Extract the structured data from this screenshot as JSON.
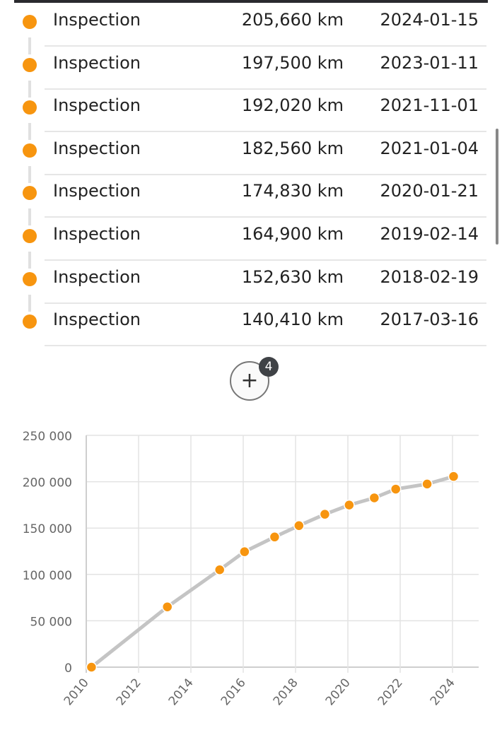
{
  "colors": {
    "accent": "#f7950f",
    "line": "#c4c4c4",
    "grid": "#e3e3e3",
    "axis_text": "#666666"
  },
  "events": [
    {
      "type": "Inspection",
      "mileage": "205,660 km",
      "date": "2024-01-15"
    },
    {
      "type": "Inspection",
      "mileage": "197,500 km",
      "date": "2023-01-11"
    },
    {
      "type": "Inspection",
      "mileage": "192,020 km",
      "date": "2021-11-01"
    },
    {
      "type": "Inspection",
      "mileage": "182,560 km",
      "date": "2021-01-04"
    },
    {
      "type": "Inspection",
      "mileage": "174,830 km",
      "date": "2020-01-21"
    },
    {
      "type": "Inspection",
      "mileage": "164,900 km",
      "date": "2019-02-14"
    },
    {
      "type": "Inspection",
      "mileage": "152,630 km",
      "date": "2018-02-19"
    },
    {
      "type": "Inspection",
      "mileage": "140,410 km",
      "date": "2017-03-16"
    }
  ],
  "show_more": {
    "icon": "plus-icon",
    "label": "+",
    "count": "4"
  },
  "chart_data": {
    "type": "line",
    "x": [
      2010.2,
      2013.1,
      2015.1,
      2016.05,
      2017.2,
      2018.13,
      2019.12,
      2020.05,
      2021.01,
      2021.83,
      2023.03,
      2024.04
    ],
    "y": [
      0,
      65000,
      105000,
      124500,
      140410,
      152630,
      164900,
      174830,
      182560,
      192020,
      197500,
      205660
    ],
    "xlim": [
      2010,
      2025
    ],
    "ylim": [
      0,
      250000
    ],
    "x_ticks": [
      "2010",
      "2012",
      "2014",
      "2016",
      "2018",
      "2020",
      "2022",
      "2024"
    ],
    "y_ticks": [
      "0",
      "50 000",
      "100 000",
      "150 000",
      "200 000",
      "250 000"
    ],
    "grid": true,
    "title": "",
    "xlabel": "",
    "ylabel": ""
  }
}
